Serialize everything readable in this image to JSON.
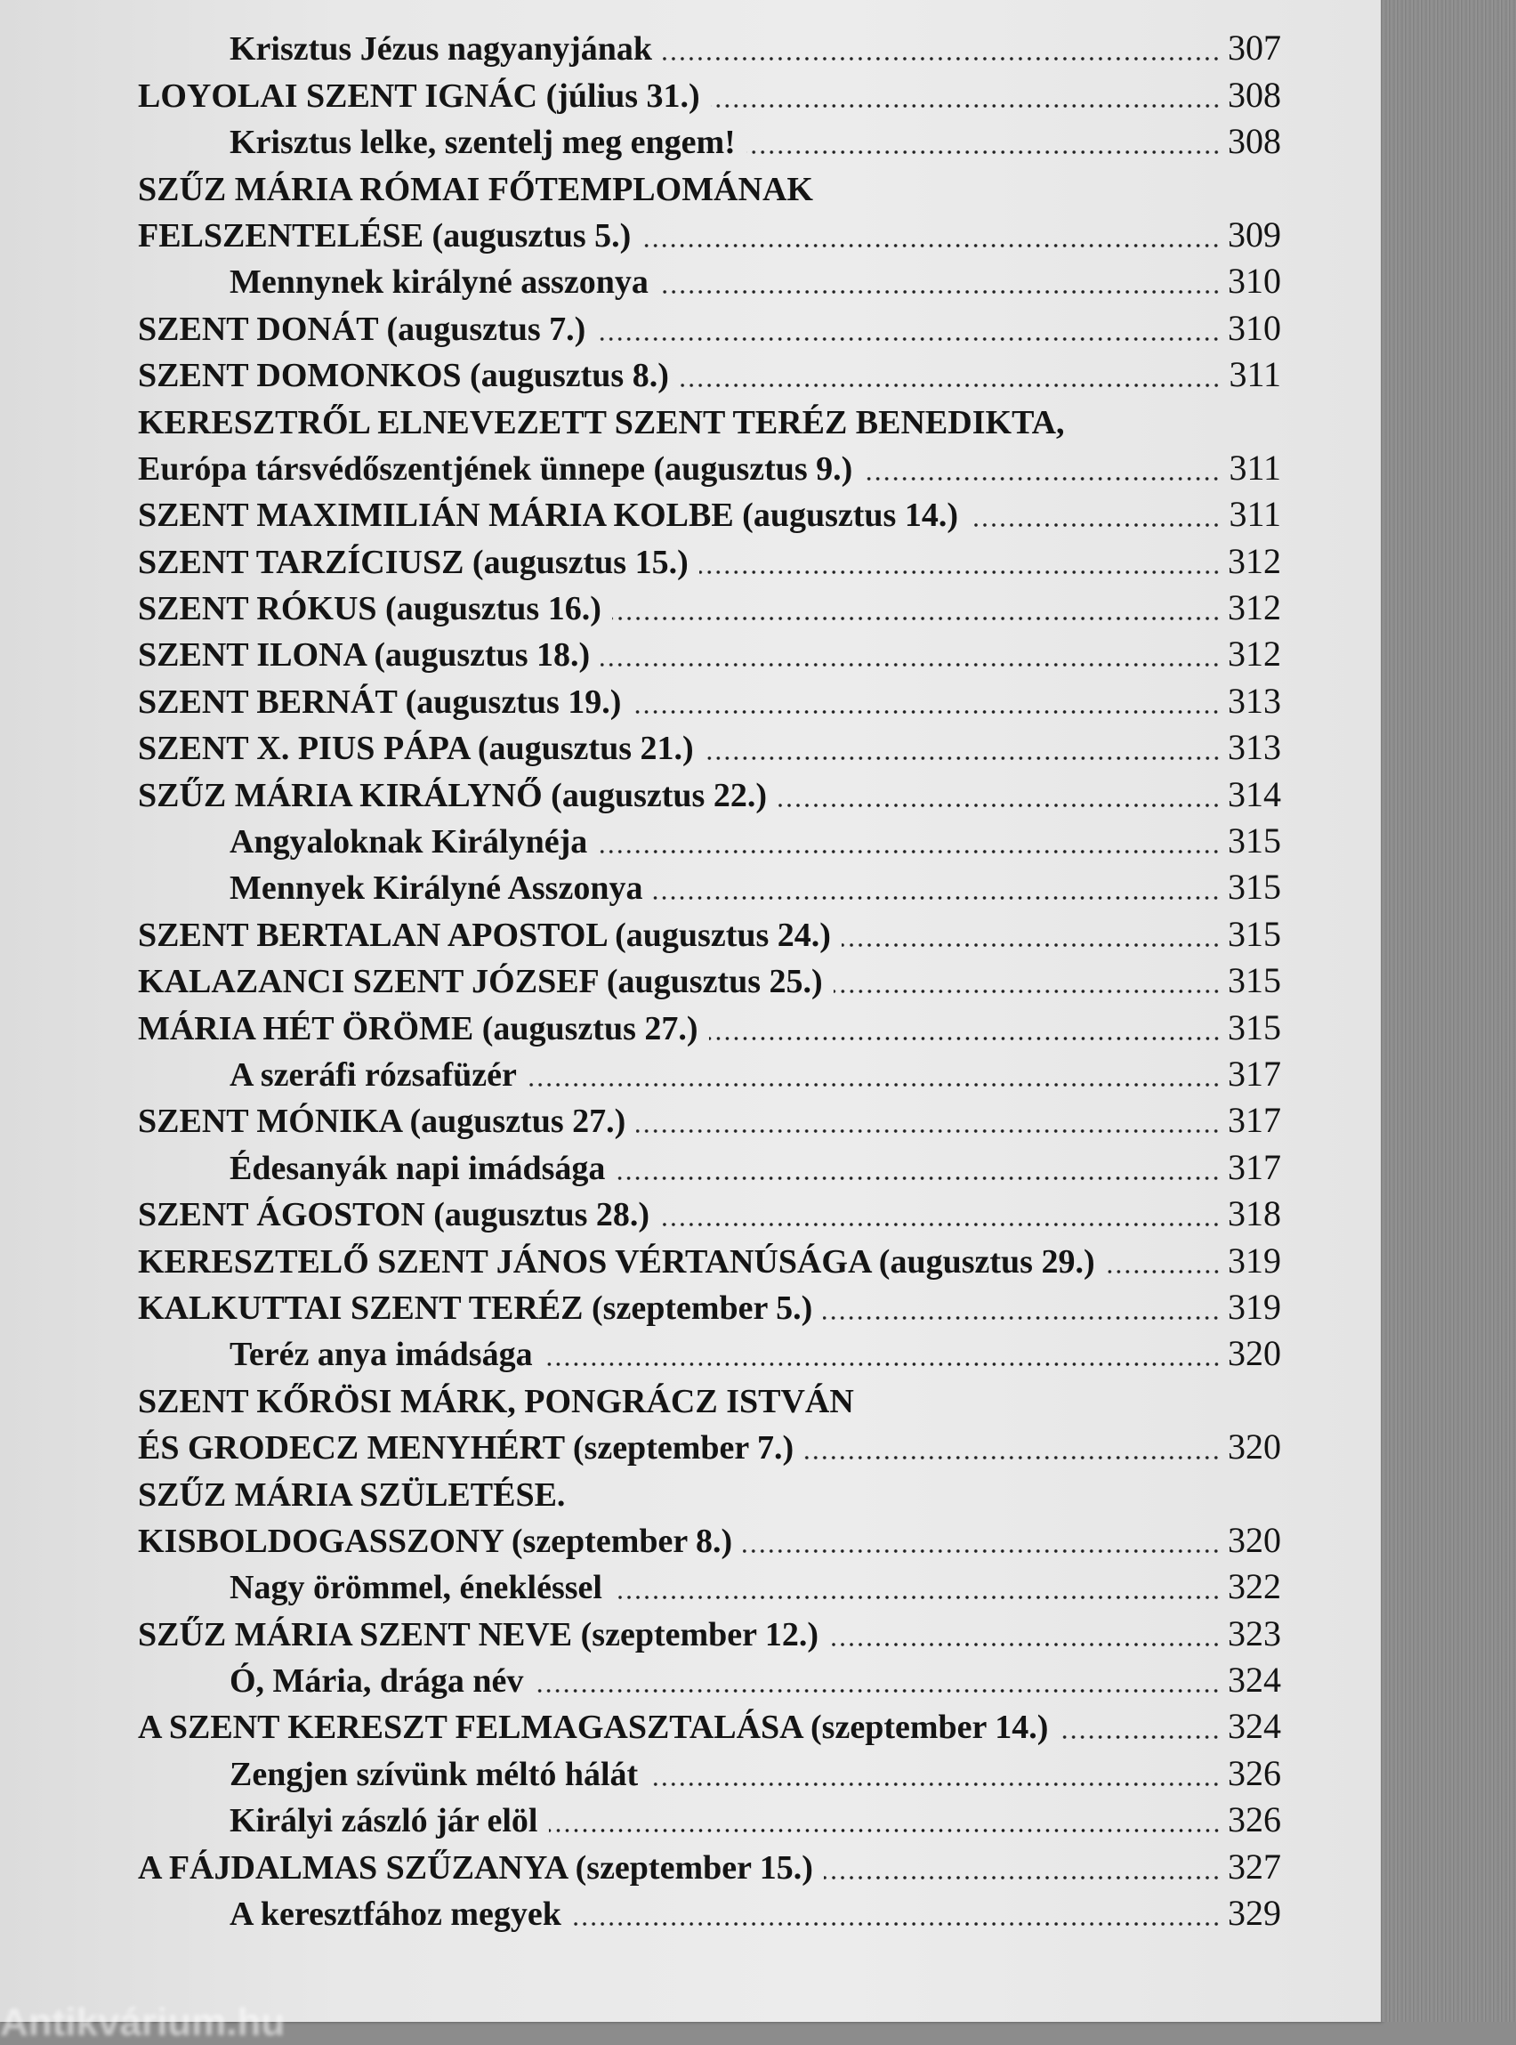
{
  "watermark": "Antikvárium.hu",
  "entries": [
    {
      "level": "sub",
      "text": "Krisztus Jézus nagyanyjának",
      "page": "307"
    },
    {
      "level": "main",
      "text": "LOYOLAI SZENT IGNÁC (július 31.)",
      "page": "308"
    },
    {
      "level": "sub",
      "text": "Krisztus lelke, szentelj meg engem!",
      "page": "308"
    },
    {
      "level": "main",
      "text": "SZŰZ MÁRIA RÓMAI FŐTEMPLOMÁNAK",
      "page": ""
    },
    {
      "level": "main",
      "text": "FELSZENTELÉSE (augusztus 5.)",
      "page": "309"
    },
    {
      "level": "sub",
      "text": "Mennynek királyné asszonya",
      "page": "310"
    },
    {
      "level": "main",
      "text": "SZENT DONÁT (augusztus 7.)",
      "page": "310"
    },
    {
      "level": "main",
      "text": "SZENT DOMONKOS (augusztus 8.)",
      "page": "311"
    },
    {
      "level": "main",
      "text": "KERESZTRŐL ELNEVEZETT SZENT TERÉZ BENEDIKTA,",
      "page": ""
    },
    {
      "level": "main",
      "text": "Európa társvédőszentjének ünnepe (augusztus 9.)",
      "page": "311"
    },
    {
      "level": "main",
      "text": "SZENT MAXIMILIÁN MÁRIA KOLBE (augusztus 14.)",
      "page": "311"
    },
    {
      "level": "main",
      "text": "SZENT TARZÍCIUSZ (augusztus 15.)",
      "page": "312"
    },
    {
      "level": "main",
      "text": "SZENT RÓKUS (augusztus 16.)",
      "page": "312"
    },
    {
      "level": "main",
      "text": "SZENT ILONA (augusztus 18.)",
      "page": "312"
    },
    {
      "level": "main",
      "text": "SZENT BERNÁT (augusztus 19.)",
      "page": "313"
    },
    {
      "level": "main",
      "text": "SZENT X. PIUS PÁPA (augusztus 21.)",
      "page": "313"
    },
    {
      "level": "main",
      "text": "SZŰZ MÁRIA KIRÁLYNŐ (augusztus 22.)",
      "page": "314"
    },
    {
      "level": "sub",
      "text": "Angyaloknak Királynéja",
      "page": "315"
    },
    {
      "level": "sub",
      "text": "Mennyek Királyné Asszonya",
      "page": "315"
    },
    {
      "level": "main",
      "text": "SZENT BERTALAN APOSTOL (augusztus 24.)",
      "page": "315"
    },
    {
      "level": "main",
      "text": "KALAZANCI SZENT JÓZSEF (augusztus 25.)",
      "page": "315"
    },
    {
      "level": "main",
      "text": "MÁRIA HÉT ÖRÖME (augusztus 27.)",
      "page": "315"
    },
    {
      "level": "sub",
      "text": "A szeráfi rózsafüzér",
      "page": "317"
    },
    {
      "level": "main",
      "text": "SZENT MÓNIKA (augusztus 27.)",
      "page": "317"
    },
    {
      "level": "sub",
      "text": "Édesanyák napi imádsága",
      "page": "317"
    },
    {
      "level": "main",
      "text": "SZENT ÁGOSTON (augusztus 28.)",
      "page": "318"
    },
    {
      "level": "main",
      "text": "KERESZTELŐ SZENT JÁNOS VÉRTANÚSÁGA (augusztus 29.)",
      "page": "319"
    },
    {
      "level": "main",
      "text": "KALKUTTAI SZENT TERÉZ (szeptember 5.)",
      "page": "319"
    },
    {
      "level": "sub",
      "text": "Teréz anya imádsága",
      "page": "320"
    },
    {
      "level": "main",
      "text": "SZENT KŐRÖSI MÁRK, PONGRÁCZ ISTVÁN",
      "page": ""
    },
    {
      "level": "main",
      "text": "ÉS GRODECZ MENYHÉRT (szeptember 7.)",
      "page": "320"
    },
    {
      "level": "main",
      "text": "SZŰZ MÁRIA SZÜLETÉSE.",
      "page": ""
    },
    {
      "level": "main",
      "text": "KISBOLDOGASSZONY (szeptember 8.)",
      "page": "320"
    },
    {
      "level": "sub",
      "text": "Nagy örömmel, énekléssel",
      "page": "322"
    },
    {
      "level": "main",
      "text": "SZŰZ MÁRIA SZENT NEVE (szeptember 12.)",
      "page": "323"
    },
    {
      "level": "sub",
      "text": "Ó, Mária, drága név",
      "page": "324"
    },
    {
      "level": "main",
      "text": "A SZENT KERESZT FELMAGASZTALÁSA (szeptember 14.)",
      "page": "324"
    },
    {
      "level": "sub",
      "text": "Zengjen szívünk méltó hálát",
      "page": "326"
    },
    {
      "level": "sub",
      "text": "Királyi zászló jár elöl",
      "page": "326"
    },
    {
      "level": "main",
      "text": "A FÁJDALMAS SZŰZANYA (szeptember 15.)",
      "page": "327"
    },
    {
      "level": "sub",
      "text": "A keresztfához megyek",
      "page": "329"
    }
  ]
}
